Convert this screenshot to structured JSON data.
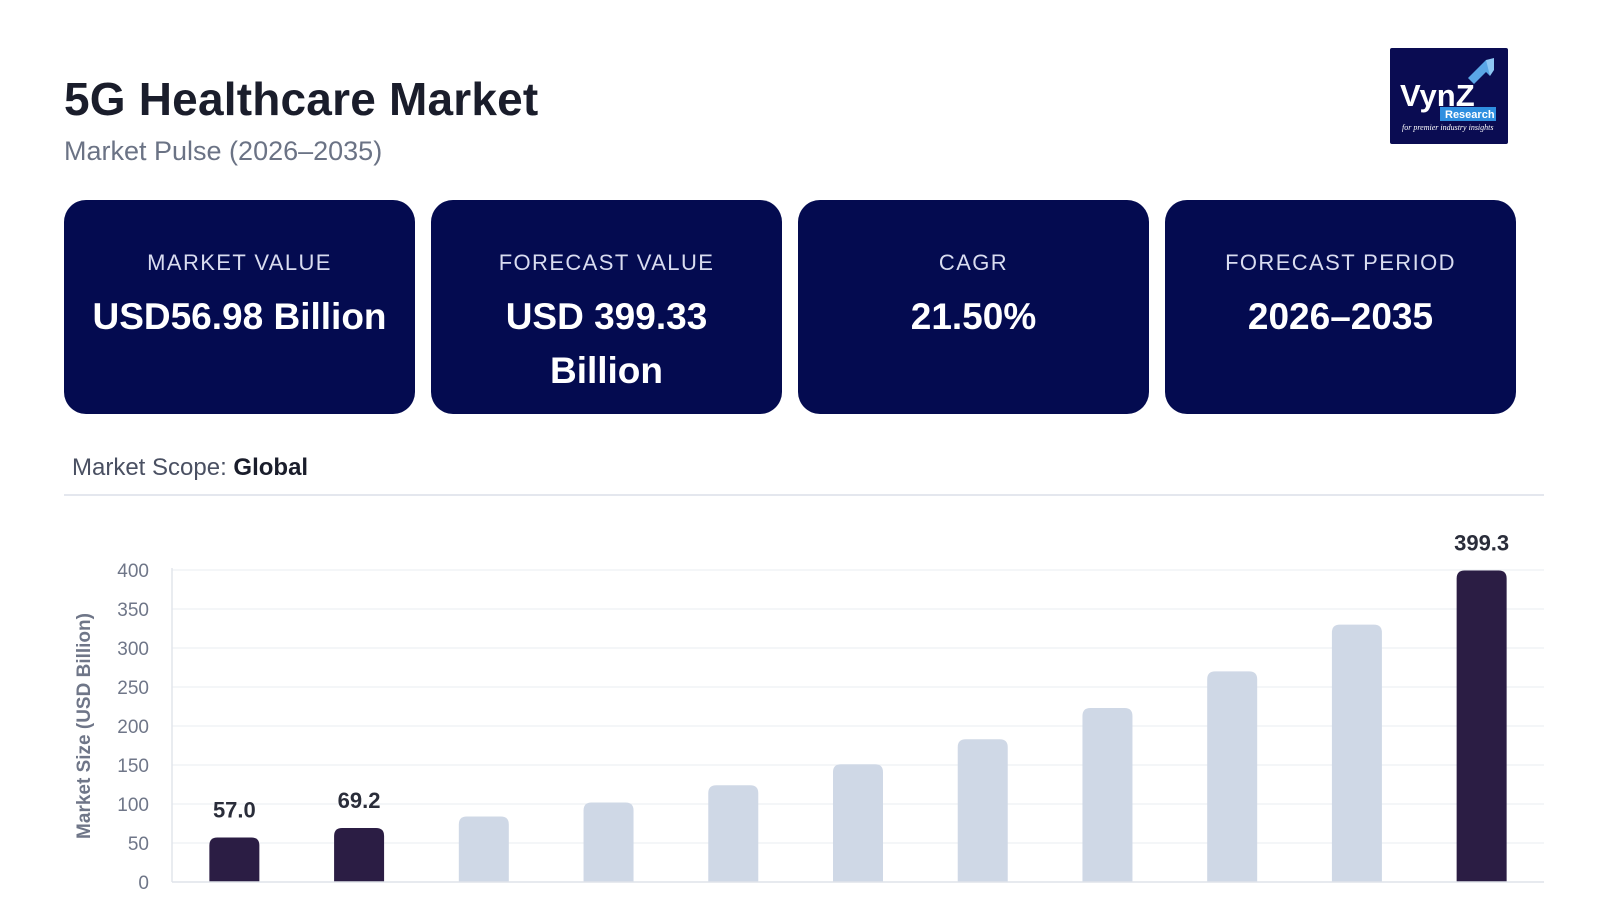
{
  "header": {
    "title": "5G Healthcare Market",
    "subtitle": "Market Pulse (2026–2035)"
  },
  "logo": {
    "text": "VynZ",
    "tag": "Research",
    "tagline": "for premier industry insights"
  },
  "cards": [
    {
      "label": "MARKET VALUE",
      "value": "USD56.98 Billion"
    },
    {
      "label": "FORECAST VALUE",
      "value": "USD 399.33 Billion"
    },
    {
      "label": "CAGR",
      "value": "21.50%"
    },
    {
      "label": "FORECAST PERIOD",
      "value": "2026–2035"
    }
  ],
  "scope": {
    "label": "Market Scope:",
    "value": "Global"
  },
  "colors": {
    "card_bg": "#040b50",
    "highlight_bar": "#2b1d44",
    "muted_bar": "#cfd8e6",
    "grid": "#e9ecf2"
  },
  "chart_data": {
    "type": "bar",
    "title": "",
    "xlabel": "",
    "ylabel": "Market Size (USD Billion)",
    "ylim": [
      0,
      400
    ],
    "yticks": [
      0,
      50,
      100,
      150,
      200,
      250,
      300,
      350,
      400
    ],
    "grid": true,
    "values": [
      57.0,
      69.2,
      84,
      102,
      124,
      151,
      183,
      223,
      270,
      330,
      399.3
    ],
    "highlight": [
      0,
      1,
      10
    ],
    "data_labels": [
      {
        "index": 0,
        "text": "57.0"
      },
      {
        "index": 1,
        "text": "69.2"
      },
      {
        "index": 10,
        "text": "399.3"
      }
    ]
  }
}
